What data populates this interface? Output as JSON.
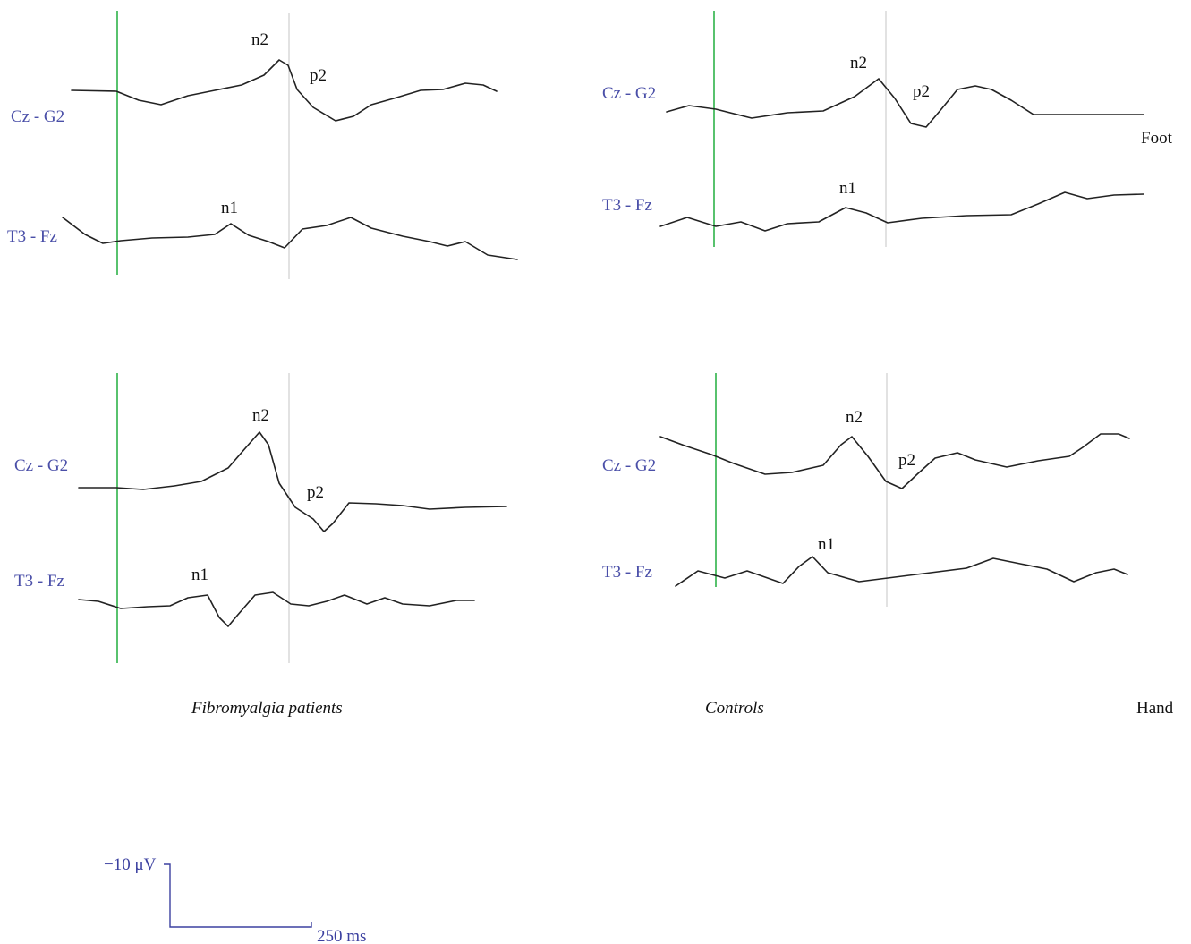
{
  "chart_data": {
    "type": "line",
    "colors": {
      "trace": "#222222",
      "stimulus_marker": "#2fb34a",
      "latency_marker": "#cfcfcf",
      "channel_label": "#4a4fa8",
      "scale_bar": "#3b40a0"
    },
    "group_captions": {
      "left": "Fibromyalgia patients",
      "right": "Controls"
    },
    "row_labels": {
      "top": "Foot",
      "bottom": "Hand"
    },
    "scale_bar": {
      "amplitude_label": "−10 μV",
      "time_label": "250 ms"
    },
    "panels": [
      {
        "group": "Fibromyalgia patients",
        "site": "Foot",
        "traces": [
          {
            "name": "Cz - G2",
            "peaks": [
              {
                "label": "n2"
              },
              {
                "label": "p2"
              }
            ],
            "points": [
              [
                80,
                101
              ],
              [
                130,
                102
              ],
              [
                155,
                112
              ],
              [
                180,
                117
              ],
              [
                210,
                107
              ],
              [
                240,
                101
              ],
              [
                270,
                95
              ],
              [
                295,
                84
              ],
              [
                312,
                67
              ],
              [
                322,
                73
              ],
              [
                332,
                100
              ],
              [
                350,
                120
              ],
              [
                375,
                135
              ],
              [
                395,
                130
              ],
              [
                415,
                117
              ],
              [
                440,
                110
              ],
              [
                470,
                101
              ],
              [
                495,
                100
              ],
              [
                520,
                93
              ],
              [
                540,
                95
              ],
              [
                555,
                102
              ]
            ]
          },
          {
            "name": "T3 - Fz",
            "peaks": [
              {
                "label": "n1"
              }
            ],
            "points": [
              [
                70,
                243
              ],
              [
                95,
                262
              ],
              [
                115,
                272
              ],
              [
                135,
                269
              ],
              [
                170,
                266
              ],
              [
                210,
                265
              ],
              [
                240,
                262
              ],
              [
                258,
                250
              ],
              [
                278,
                263
              ],
              [
                300,
                270
              ],
              [
                318,
                277
              ],
              [
                338,
                256
              ],
              [
                365,
                252
              ],
              [
                392,
                243
              ],
              [
                415,
                255
              ],
              [
                450,
                264
              ],
              [
                480,
                270
              ],
              [
                500,
                275
              ],
              [
                520,
                270
              ],
              [
                545,
                285
              ],
              [
                578,
                290
              ]
            ]
          }
        ]
      },
      {
        "group": "Controls",
        "site": "Foot",
        "traces": [
          {
            "name": "Cz - G2",
            "peaks": [
              {
                "label": "n2"
              },
              {
                "label": "p2"
              }
            ],
            "points": [
              [
                745,
                125
              ],
              [
                770,
                118
              ],
              [
                800,
                122
              ],
              [
                840,
                132
              ],
              [
                880,
                126
              ],
              [
                920,
                124
              ],
              [
                955,
                108
              ],
              [
                982,
                88
              ],
              [
                1000,
                110
              ],
              [
                1018,
                138
              ],
              [
                1035,
                142
              ],
              [
                1052,
                122
              ],
              [
                1070,
                100
              ],
              [
                1090,
                96
              ],
              [
                1108,
                100
              ],
              [
                1130,
                112
              ],
              [
                1155,
                128
              ],
              [
                1278,
                128
              ]
            ]
          },
          {
            "name": "T3 - Fz",
            "peaks": [
              {
                "label": "n1"
              }
            ],
            "points": [
              [
                738,
                253
              ],
              [
                768,
                243
              ],
              [
                800,
                253
              ],
              [
                828,
                248
              ],
              [
                855,
                258
              ],
              [
                880,
                250
              ],
              [
                915,
                248
              ],
              [
                945,
                232
              ],
              [
                968,
                238
              ],
              [
                992,
                249
              ],
              [
                1030,
                244
              ],
              [
                1080,
                241
              ],
              [
                1130,
                240
              ],
              [
                1160,
                228
              ],
              [
                1190,
                215
              ],
              [
                1215,
                222
              ],
              [
                1245,
                218
              ],
              [
                1278,
                217
              ]
            ]
          }
        ]
      },
      {
        "group": "Fibromyalgia patients",
        "site": "Hand",
        "traces": [
          {
            "name": "Cz - G2",
            "peaks": [
              {
                "label": "n2"
              },
              {
                "label": "p2"
              }
            ],
            "points": [
              [
                88,
                545
              ],
              [
                130,
                545
              ],
              [
                160,
                547
              ],
              [
                195,
                543
              ],
              [
                225,
                538
              ],
              [
                255,
                523
              ],
              [
                275,
                500
              ],
              [
                290,
                483
              ],
              [
                300,
                497
              ],
              [
                312,
                540
              ],
              [
                330,
                567
              ],
              [
                350,
                580
              ],
              [
                362,
                594
              ],
              [
                372,
                585
              ],
              [
                390,
                562
              ],
              [
                420,
                563
              ],
              [
                450,
                565
              ],
              [
                480,
                569
              ],
              [
                520,
                567
              ],
              [
                566,
                566
              ]
            ]
          },
          {
            "name": "T3 - Fz",
            "peaks": [
              {
                "label": "n1"
              }
            ],
            "points": [
              [
                88,
                670
              ],
              [
                110,
                672
              ],
              [
                135,
                680
              ],
              [
                165,
                678
              ],
              [
                190,
                677
              ],
              [
                210,
                668
              ],
              [
                232,
                665
              ],
              [
                245,
                690
              ],
              [
                255,
                700
              ],
              [
                265,
                688
              ],
              [
                285,
                665
              ],
              [
                305,
                662
              ],
              [
                325,
                675
              ],
              [
                345,
                677
              ],
              [
                365,
                672
              ],
              [
                385,
                665
              ],
              [
                410,
                675
              ],
              [
                430,
                668
              ],
              [
                450,
                675
              ],
              [
                480,
                677
              ],
              [
                510,
                671
              ],
              [
                530,
                671
              ]
            ]
          }
        ]
      },
      {
        "group": "Controls",
        "site": "Hand",
        "traces": [
          {
            "name": "Cz - G2",
            "peaks": [
              {
                "label": "n2"
              },
              {
                "label": "p2"
              }
            ],
            "points": [
              [
                738,
                488
              ],
              [
                765,
                498
              ],
              [
                795,
                508
              ],
              [
                820,
                518
              ],
              [
                855,
                530
              ],
              [
                885,
                528
              ],
              [
                920,
                520
              ],
              [
                940,
                497
              ],
              [
                952,
                488
              ],
              [
                970,
                510
              ],
              [
                990,
                538
              ],
              [
                1008,
                546
              ],
              [
                1025,
                530
              ],
              [
                1045,
                512
              ],
              [
                1070,
                506
              ],
              [
                1090,
                514
              ],
              [
                1125,
                522
              ],
              [
                1160,
                515
              ],
              [
                1195,
                510
              ],
              [
                1210,
                500
              ],
              [
                1230,
                485
              ],
              [
                1250,
                485
              ],
              [
                1262,
                490
              ]
            ]
          },
          {
            "name": "T3 - Fz",
            "peaks": [
              {
                "label": "n1"
              }
            ],
            "points": [
              [
                755,
                655
              ],
              [
                780,
                638
              ],
              [
                810,
                646
              ],
              [
                835,
                638
              ],
              [
                855,
                645
              ],
              [
                875,
                652
              ],
              [
                893,
                633
              ],
              [
                908,
                622
              ],
              [
                925,
                640
              ],
              [
                960,
                650
              ],
              [
                1000,
                645
              ],
              [
                1040,
                640
              ],
              [
                1080,
                635
              ],
              [
                1110,
                624
              ],
              [
                1140,
                630
              ],
              [
                1170,
                636
              ],
              [
                1200,
                650
              ],
              [
                1225,
                640
              ],
              [
                1245,
                636
              ],
              [
                1260,
                642
              ]
            ]
          }
        ]
      }
    ]
  }
}
